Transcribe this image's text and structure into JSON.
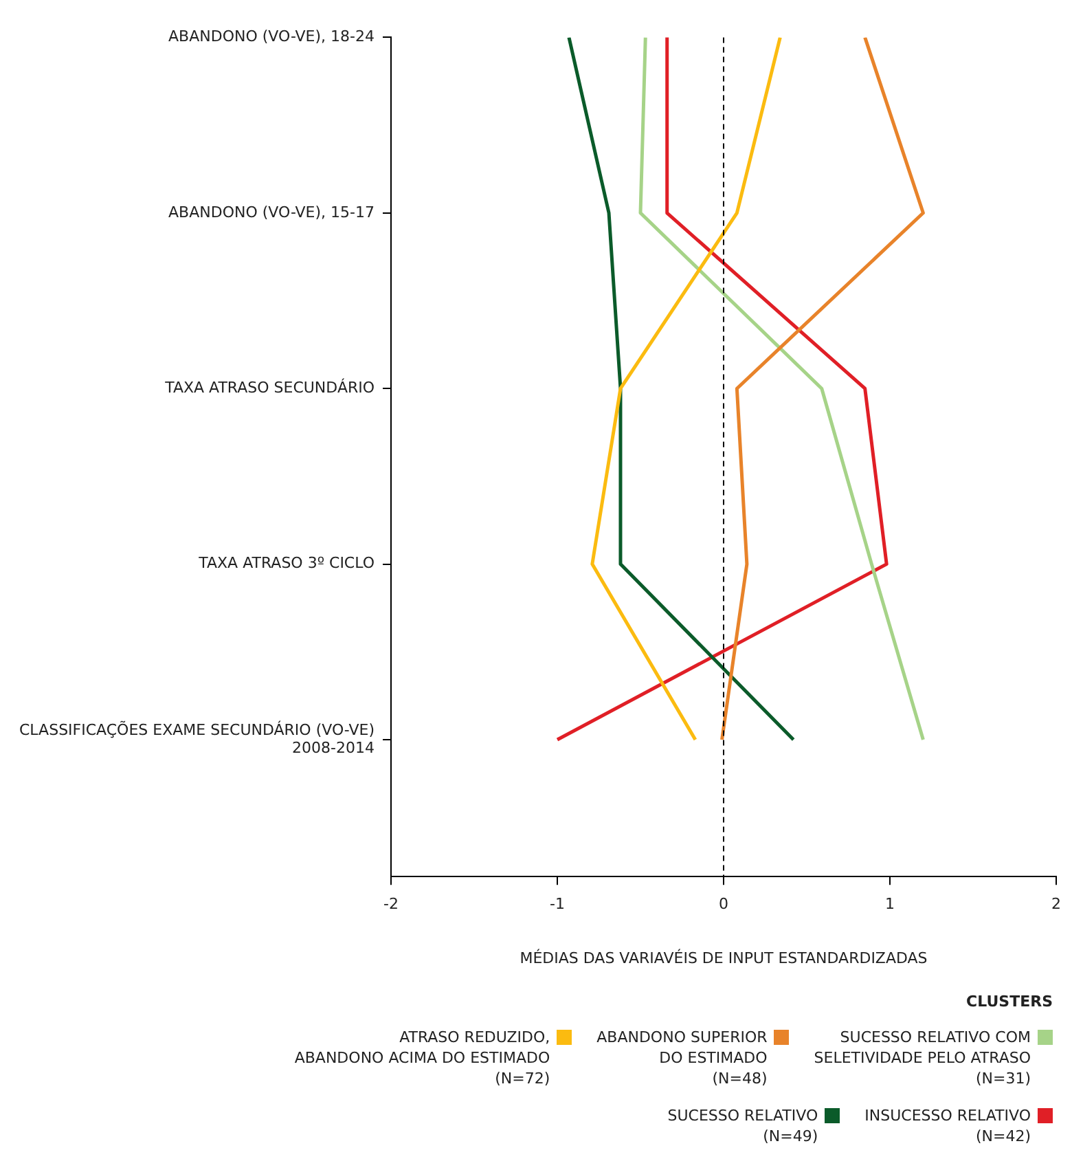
{
  "chart_data": {
    "type": "line",
    "orientation": "horizontal",
    "xlabel": "MÉDIAS DAS VARIAVÉIS DE INPUT ESTANDARDIZADAS",
    "legend_title": "CLUSTERS",
    "legend": "bottom",
    "grid": false,
    "categories": [
      "ABANDONO (VO-VE), 18-24",
      "ABANDONO (VO-VE), 15-17",
      "TAXA ATRASO SECUNDÁRIO",
      "TAXA ATRASO 3º CICLO",
      "CLASSIFICAÇÕES EXAME SECUNDÁRIO (VO-VE)\n2008-2014"
    ],
    "xlim": [
      -2,
      2
    ],
    "xticks": [
      -2,
      -1,
      0,
      1,
      2
    ],
    "ref_lines": [
      {
        "axis": "x",
        "value": 0,
        "line_style": "dashed",
        "color": "#000000"
      }
    ],
    "series": [
      {
        "name": "ATRASO REDUZIDO,\nABANDONO ACIMA DO ESTIMADO\n(N=72)",
        "color": "#fbbb10",
        "values": [
          0.34,
          0.08,
          -0.62,
          -0.79,
          -0.17
        ]
      },
      {
        "name": "ABANDONO SUPERIOR\nDO ESTIMADO\n(N=48)",
        "color": "#e8832a",
        "values": [
          0.85,
          1.2,
          0.08,
          0.14,
          -0.01
        ]
      },
      {
        "name": "SUCESSO RELATIVO COM\nSELETIVIDADE PELO ATRASO\n(N=31)",
        "color": "#a6d388",
        "values": [
          -0.47,
          -0.5,
          0.59,
          0.89,
          1.2
        ]
      },
      {
        "name": "SUCESSO RELATIVO\n(N=49)",
        "color": "#0b5b2a",
        "values": [
          -0.93,
          -0.69,
          -0.62,
          -0.62,
          0.42
        ]
      },
      {
        "name": "INSUCESSO RELATIVO\n(N=42)",
        "color": "#e01f26",
        "values": [
          -0.34,
          -0.34,
          0.85,
          0.98,
          -1.0
        ]
      }
    ]
  }
}
